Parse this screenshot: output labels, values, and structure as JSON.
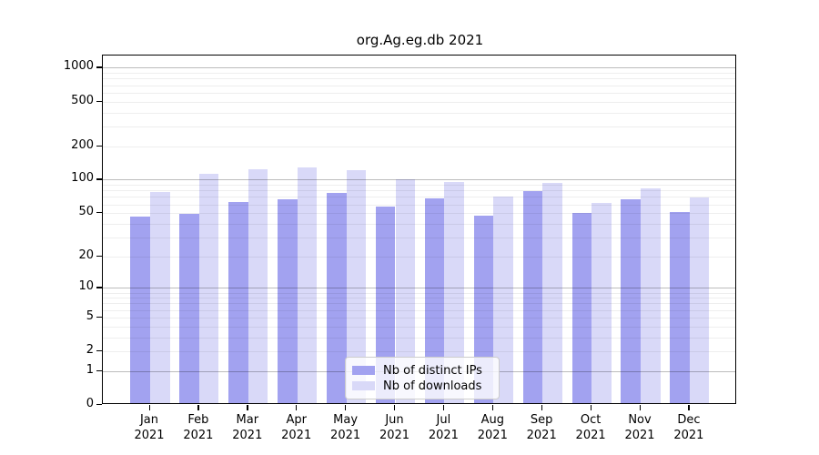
{
  "title": "org.Ag.eg.db 2021",
  "chart_data": {
    "type": "bar",
    "title": "org.Ag.eg.db 2021",
    "categories": [
      "Jan 2021",
      "Feb 2021",
      "Mar 2021",
      "Apr 2021",
      "May 2021",
      "Jun 2021",
      "Jul 2021",
      "Aug 2021",
      "Sep 2021",
      "Oct 2021",
      "Nov 2021",
      "Dec 2021"
    ],
    "series": [
      {
        "name": "Nb of distinct IPs",
        "color": "#a2a2f0",
        "values": [
          46,
          49,
          63,
          67,
          76,
          57,
          68,
          47,
          79,
          50,
          67,
          51
        ]
      },
      {
        "name": "Nb of downloads",
        "color": "#d9d9f8",
        "values": [
          78,
          112,
          123,
          130,
          122,
          101,
          96,
          71,
          93,
          62,
          84,
          69
        ]
      }
    ],
    "yscale": "log1p",
    "ylim": [
      0,
      1270
    ],
    "yticks": [
      1000,
      500,
      200,
      100,
      50,
      20,
      10,
      5,
      2,
      1,
      0
    ],
    "grid": true,
    "legend_position": "lower center"
  },
  "colors": {
    "grid_major": "rgba(0,0,0,0.26)",
    "grid_minor": "rgba(0,0,0,0.065)",
    "axis": "#000000",
    "legend_border": "#cccccc",
    "background": "#ffffff"
  }
}
